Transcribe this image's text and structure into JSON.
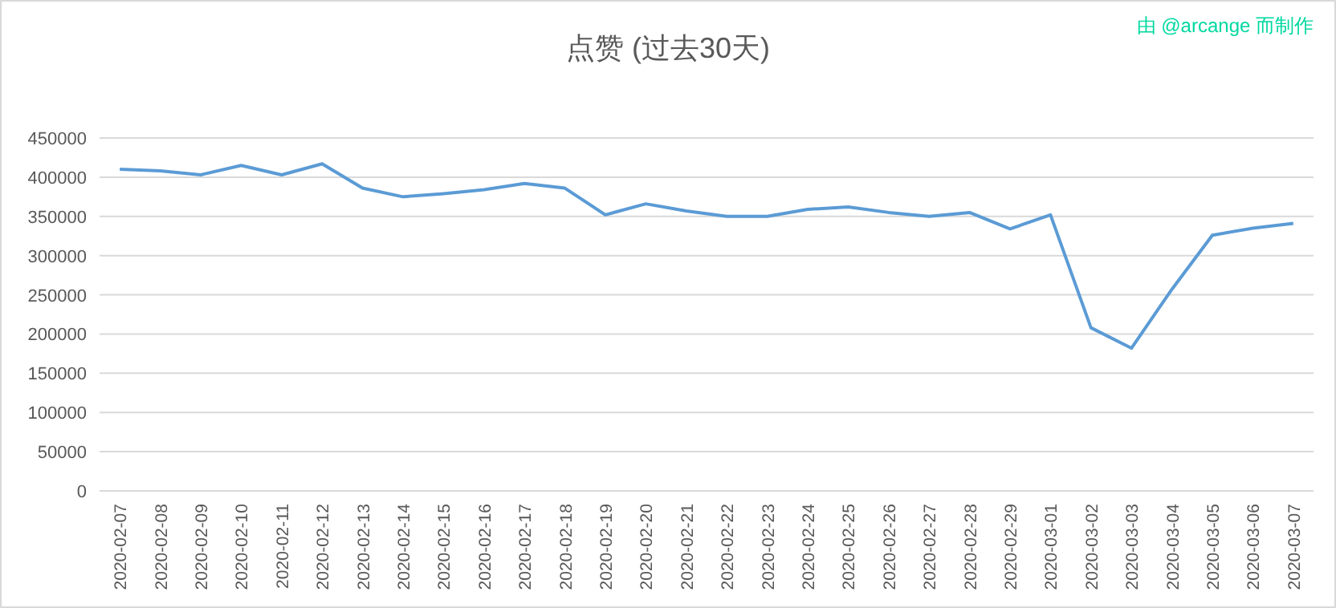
{
  "chart_data": {
    "type": "line",
    "title": "点赞 (过去30天)",
    "annotations": [
      "由 @arcange 而制作"
    ],
    "categories": [
      "2020-02-07",
      "2020-02-08",
      "2020-02-09",
      "2020-02-10",
      "2020-02-11",
      "2020-02-12",
      "2020-02-13",
      "2020-02-14",
      "2020-02-15",
      "2020-02-16",
      "2020-02-17",
      "2020-02-18",
      "2020-02-19",
      "2020-02-20",
      "2020-02-21",
      "2020-02-22",
      "2020-02-23",
      "2020-02-24",
      "2020-02-25",
      "2020-02-26",
      "2020-02-27",
      "2020-02-28",
      "2020-02-29",
      "2020-03-01",
      "2020-03-02",
      "2020-03-03",
      "2020-03-04",
      "2020-03-05",
      "2020-03-06",
      "2020-03-07"
    ],
    "series": [
      {
        "color": "#5b9bd5",
        "values": [
          410000,
          408000,
          403000,
          415000,
          403000,
          417000,
          386000,
          375000,
          379000,
          384000,
          392000,
          386000,
          352000,
          366000,
          357000,
          350000,
          350000,
          359000,
          362000,
          355000,
          350000,
          355000,
          334000,
          352000,
          208000,
          182000,
          257000,
          326000,
          335000,
          341000
        ]
      }
    ],
    "ylim": [
      0,
      450000
    ],
    "yticks": [
      0,
      50000,
      100000,
      150000,
      200000,
      250000,
      300000,
      350000,
      400000,
      450000
    ],
    "grid": "y",
    "marker": "none",
    "line_style": "solid"
  }
}
